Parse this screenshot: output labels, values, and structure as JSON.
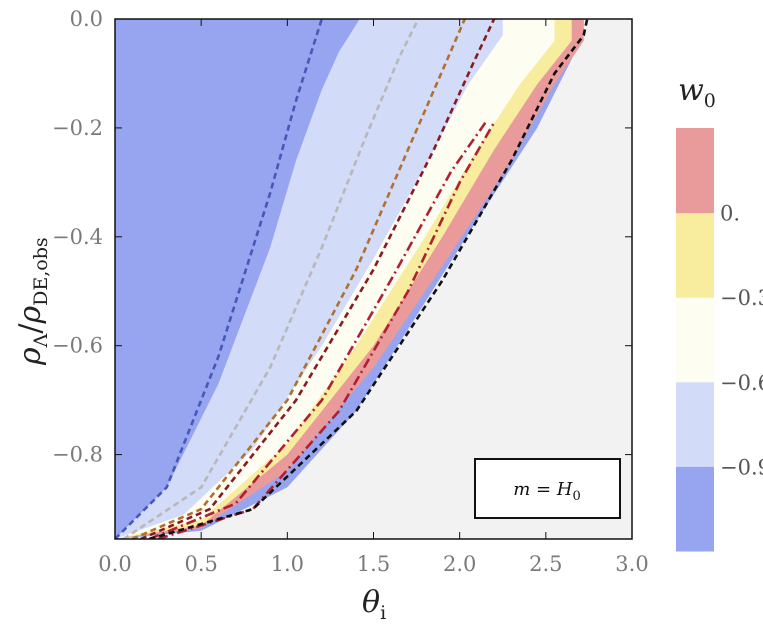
{
  "chart_data": {
    "type": "heatmap",
    "title": "",
    "xlabel": "θ",
    "xlabel_sub": "i",
    "ylabel": "ρ_Λ / ρ_DE,obs",
    "ylabel_rho": "ρ",
    "ylabel_sub1": "Λ",
    "ylabel_slash": "/",
    "ylabel_sub2": "DE,obs",
    "xlim": [
      0.0,
      3.0
    ],
    "ylim": [
      -0.955,
      0.0
    ],
    "x_ticks": [
      0.0,
      0.5,
      1.0,
      1.5,
      2.0,
      2.5,
      3.0
    ],
    "x_tick_labels": [
      "0.0",
      "0.5",
      "1.0",
      "1.5",
      "2.0",
      "2.5",
      "3.0"
    ],
    "y_ticks": [
      0.0,
      -0.2,
      -0.4,
      -0.6,
      -0.8
    ],
    "y_tick_labels": [
      "0.0",
      "−0.2",
      "−0.4",
      "−0.6",
      "−0.8"
    ],
    "colorbar": {
      "title": "w",
      "title_sub": "0",
      "tick_labels": [
        "0.",
        "−0.3",
        "−0.6",
        "−0.9"
      ],
      "bins": [
        {
          "range": [
            -1.2,
            -0.9
          ],
          "color": "#97a5f0"
        },
        {
          "range": [
            -0.9,
            -0.6
          ],
          "color": "#d2dbf7"
        },
        {
          "range": [
            -0.6,
            -0.3
          ],
          "color": "#fdfdf2"
        },
        {
          "range": [
            -0.3,
            0.0
          ],
          "color": "#f8ec9e"
        },
        {
          "range": [
            0.0,
            0.3
          ],
          "color": "#e99a9b"
        }
      ]
    },
    "regions": [
      {
        "name": "w0 < -0.9 (left)",
        "color": "#97a5f0",
        "x_upper": [
          0.0,
          0.3,
          0.6,
          0.9,
          1.05,
          1.2,
          1.3,
          1.4,
          1.42
        ],
        "y_upper": [
          -0.955,
          -0.86,
          -0.67,
          -0.42,
          -0.26,
          -0.13,
          -0.06,
          -0.01,
          0.0
        ]
      },
      {
        "name": "w0 -0.9 to -0.6",
        "color": "#d2dbf7",
        "x_upper": [
          0.0,
          0.4,
          0.8,
          1.2,
          1.5,
          1.8,
          2.05,
          2.25
        ],
        "y_upper": [
          -0.955,
          -0.91,
          -0.79,
          -0.6,
          -0.44,
          -0.27,
          -0.12,
          -0.03
        ]
      },
      {
        "name": "w0 -0.6 to -0.3",
        "color": "#fdfdf2",
        "x_upper": [
          0.0,
          0.5,
          1.0,
          1.4,
          1.8,
          2.1,
          2.35,
          2.55
        ],
        "y_upper": [
          -0.955,
          -0.92,
          -0.78,
          -0.6,
          -0.4,
          -0.24,
          -0.12,
          -0.04
        ]
      },
      {
        "name": "w0 -0.3 to 0",
        "color": "#f8ec9e",
        "x_upper": [
          0.0,
          0.5,
          1.0,
          1.5,
          1.9,
          2.2,
          2.45,
          2.65
        ],
        "y_upper": [
          -0.955,
          -0.93,
          -0.8,
          -0.6,
          -0.4,
          -0.24,
          -0.12,
          -0.04
        ]
      },
      {
        "name": "w0 0 to 0.3",
        "color": "#e99a9b",
        "x_upper": [
          0.0,
          0.5,
          1.0,
          1.5,
          1.95,
          2.3,
          2.55,
          2.72
        ],
        "y_upper": [
          -0.955,
          -0.935,
          -0.83,
          -0.64,
          -0.43,
          -0.26,
          -0.12,
          -0.04
        ]
      },
      {
        "name": "w0 < -0.9 (lower band)",
        "color": "#97a5f0",
        "x_upper": [
          0.0,
          0.5,
          1.0,
          1.4,
          1.8,
          2.1,
          2.45,
          2.72
        ],
        "y_upper": [
          -0.955,
          -0.94,
          -0.86,
          -0.72,
          -0.52,
          -0.37,
          -0.2,
          -0.03
        ]
      }
    ],
    "background_color": "#f2f2f2",
    "series": [
      {
        "name": "blue dashed",
        "color": "#4858b8",
        "x": [
          0.0,
          0.3,
          0.6,
          0.9,
          1.05,
          1.15,
          1.2
        ],
        "y": [
          -0.955,
          -0.86,
          -0.62,
          -0.32,
          -0.15,
          -0.05,
          0.0
        ]
      },
      {
        "name": "gray dashed",
        "color": "#b8b8b8",
        "x": [
          0.05,
          0.5,
          0.9,
          1.2,
          1.45,
          1.65,
          1.76
        ],
        "y": [
          -0.955,
          -0.86,
          -0.64,
          -0.42,
          -0.22,
          -0.07,
          0.0
        ]
      },
      {
        "name": "orange dashed",
        "color": "#b07030",
        "x": [
          0.1,
          0.5,
          1.0,
          1.4,
          1.7,
          1.92,
          2.03
        ],
        "y": [
          -0.955,
          -0.9,
          -0.7,
          -0.46,
          -0.24,
          -0.08,
          0.0
        ]
      },
      {
        "name": "dark red dashed",
        "color": "#8a1a22",
        "x": [
          0.15,
          0.55,
          1.05,
          1.5,
          1.85,
          2.08,
          2.2
        ],
        "y": [
          -0.955,
          -0.9,
          -0.7,
          -0.46,
          -0.24,
          -0.08,
          0.0
        ]
      },
      {
        "name": "red dash-dot lower 1",
        "color": "#b02030",
        "x": [
          0.2,
          0.7,
          1.2,
          1.6,
          1.95,
          2.15
        ],
        "y": [
          -0.955,
          -0.89,
          -0.7,
          -0.48,
          -0.28,
          -0.19
        ]
      },
      {
        "name": "red dash-dot lower 2",
        "color": "#b02030",
        "x": [
          0.25,
          0.8,
          1.3,
          1.7,
          2.0,
          2.2
        ],
        "y": [
          -0.955,
          -0.9,
          -0.72,
          -0.5,
          -0.3,
          -0.19
        ]
      },
      {
        "name": "black dashed",
        "color": "#111111",
        "x": [
          0.2,
          0.8,
          1.4,
          1.9,
          2.3,
          2.55,
          2.72,
          2.74
        ],
        "y": [
          -0.955,
          -0.9,
          -0.72,
          -0.48,
          -0.26,
          -0.1,
          -0.03,
          0.0
        ]
      }
    ],
    "annotation": {
      "text": "m = H",
      "sub": "0",
      "position": "bottom-right"
    }
  }
}
